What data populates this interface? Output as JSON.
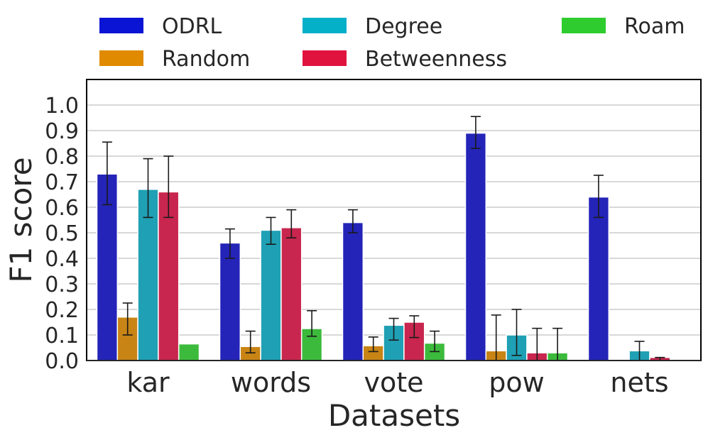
{
  "chart_data": {
    "type": "bar",
    "title": "",
    "xlabel": "Datasets",
    "ylabel": "F1 score",
    "ylim": [
      0,
      1.1
    ],
    "yticks": [
      "0.0",
      "0.1",
      "0.2",
      "0.3",
      "0.4",
      "0.5",
      "0.6",
      "0.7",
      "0.8",
      "0.9",
      "1.0"
    ],
    "grid": true,
    "legend_position": "top",
    "categories": [
      "kar",
      "words",
      "vote",
      "pow",
      "nets"
    ],
    "series": [
      {
        "name": "ODRL",
        "color": "#0a14d4",
        "bar_color": "#2424b8",
        "values": [
          0.73,
          0.46,
          0.54,
          0.89,
          0.64
        ],
        "err_low": [
          0.61,
          0.4,
          0.5,
          0.83,
          0.56
        ],
        "err_high": [
          0.855,
          0.515,
          0.59,
          0.955,
          0.725
        ]
      },
      {
        "name": "Random",
        "color": "#e08a00",
        "bar_color": "#c88415",
        "values": [
          0.17,
          0.055,
          0.058,
          0.038,
          0.0
        ],
        "err_low": [
          0.1,
          0.03,
          0.035,
          0.0,
          0.0
        ],
        "err_high": [
          0.225,
          0.115,
          0.092,
          0.178,
          0.0
        ]
      },
      {
        "name": "Degree",
        "color": "#04b0c8",
        "bar_color": "#1fa0b4",
        "values": [
          0.67,
          0.51,
          0.138,
          0.1,
          0.038
        ],
        "err_low": [
          0.56,
          0.455,
          0.08,
          0.02,
          0.0
        ],
        "err_high": [
          0.79,
          0.56,
          0.165,
          0.2,
          0.075
        ]
      },
      {
        "name": "Betweenness",
        "color": "#e0133f",
        "bar_color": "#c8264e",
        "values": [
          0.66,
          0.52,
          0.15,
          0.03,
          0.012
        ],
        "err_low": [
          0.56,
          0.48,
          0.09,
          0.0,
          0.0
        ],
        "err_high": [
          0.8,
          0.59,
          0.175,
          0.126,
          0.012
        ]
      },
      {
        "name": "Roam",
        "color": "#2ecc2e",
        "bar_color": "#3cba3c",
        "values": [
          0.065,
          0.125,
          0.068,
          0.03,
          0.0
        ],
        "err_low": [
          0.065,
          0.095,
          0.035,
          0.0,
          0.0
        ],
        "err_high": [
          0.065,
          0.195,
          0.115,
          0.126,
          0.0
        ]
      }
    ]
  }
}
